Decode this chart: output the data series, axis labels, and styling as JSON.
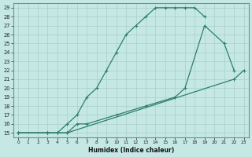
{
  "xlabel": "Humidex (Indice chaleur)",
  "bg_color": "#c5e8e5",
  "line_color": "#2d7d6e",
  "grid_color": "#a8cece",
  "xlim": [
    -0.5,
    23.5
  ],
  "ylim": [
    14.5,
    29.5
  ],
  "xticks": [
    0,
    1,
    2,
    3,
    4,
    5,
    6,
    7,
    8,
    9,
    10,
    11,
    12,
    13,
    14,
    15,
    16,
    17,
    18,
    19,
    20,
    21,
    22,
    23
  ],
  "yticks": [
    15,
    16,
    17,
    18,
    19,
    20,
    21,
    22,
    23,
    24,
    25,
    26,
    27,
    28,
    29
  ],
  "line1_x": [
    0,
    3,
    4,
    5,
    6,
    7,
    8,
    9,
    10,
    11,
    12,
    13,
    14,
    15,
    16,
    17,
    18,
    19
  ],
  "line1_y": [
    15,
    15,
    15,
    16,
    17,
    19,
    20,
    22,
    24,
    26,
    27,
    28,
    29,
    29,
    29,
    29,
    29,
    28
  ],
  "line2_x": [
    0,
    3,
    4,
    5,
    6,
    7,
    10,
    13,
    16,
    17,
    19,
    21,
    22
  ],
  "line2_y": [
    15,
    15,
    15,
    15,
    16,
    16,
    17,
    18,
    19,
    20,
    27,
    25,
    22
  ],
  "line3_x": [
    0,
    3,
    5,
    22,
    23
  ],
  "line3_y": [
    15,
    15,
    15,
    21,
    22
  ]
}
